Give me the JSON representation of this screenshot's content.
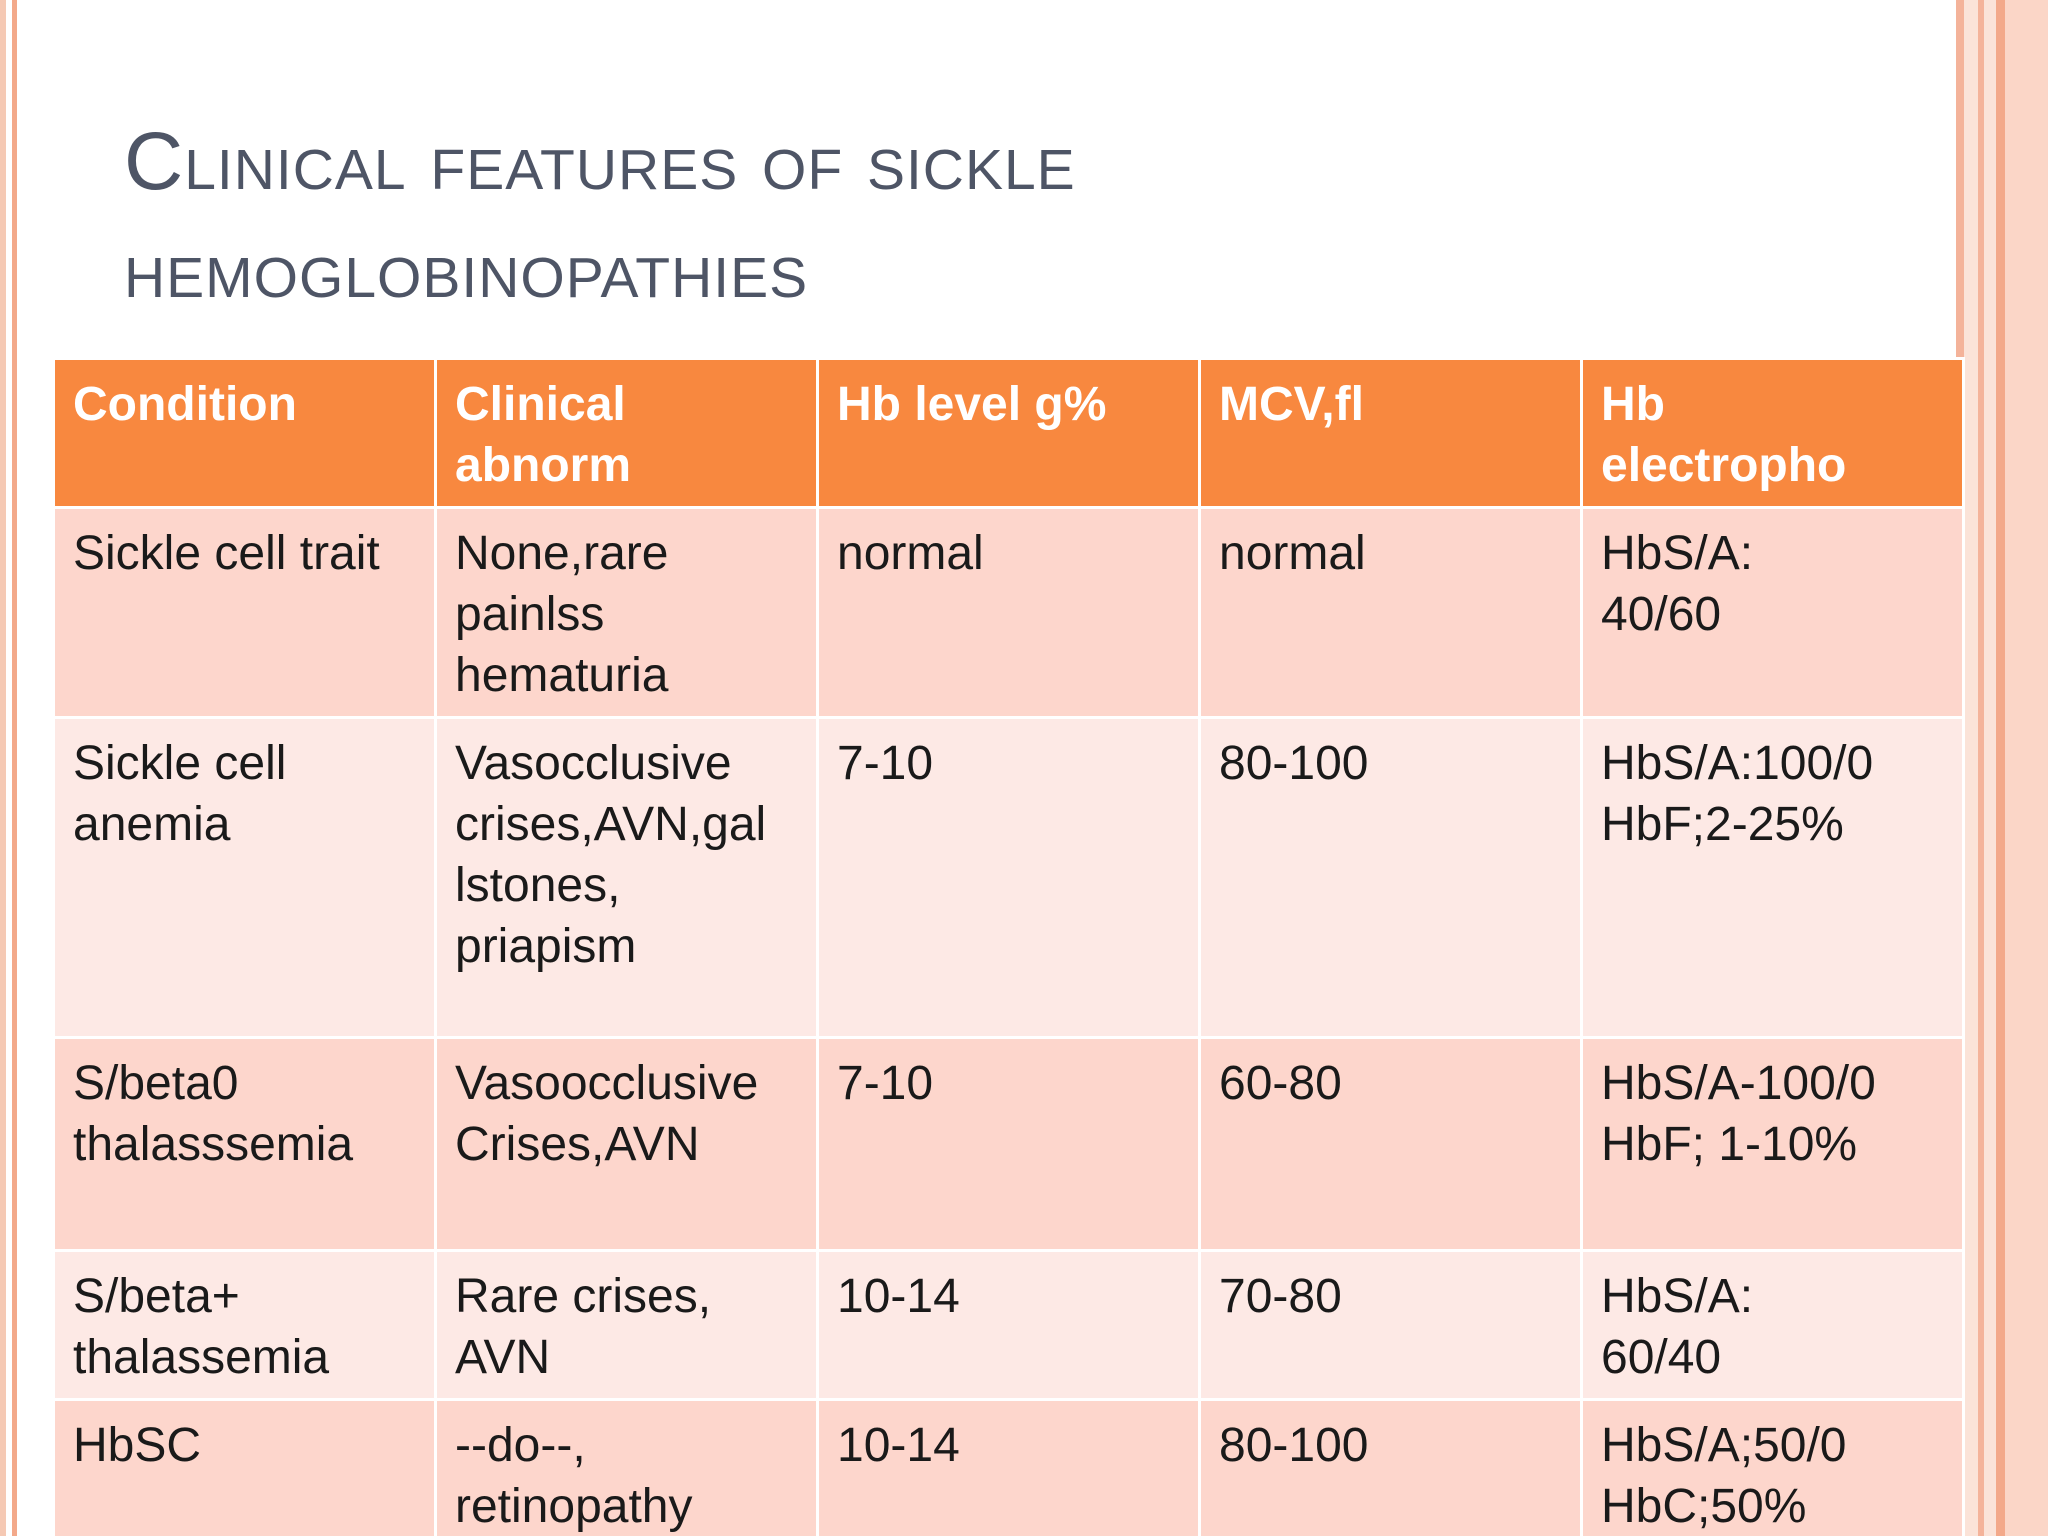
{
  "slide": {
    "title_line1": "Clinical features of sickle",
    "title_line2": "hemoglobinopathies"
  },
  "table": {
    "headers": [
      "Condition",
      "Clinical\nabnorm",
      "Hb level g%",
      "MCV,fl",
      "Hb\nelectropho"
    ],
    "rows": [
      [
        "Sickle cell trait",
        "None,rare\npainlss\nhematuria",
        "normal",
        "normal",
        "HbS/A:\n40/60"
      ],
      [
        "Sickle cell\nanemia",
        "Vasocclusive\ncrises,AVN,gal\nlstones,\npriapism",
        "7-10",
        "80-100",
        "HbS/A:100/0\nHbF;2-25%"
      ],
      [
        "S/beta0\nthalasssemia",
        "Vasoocclusive\nCrises,AVN",
        "7-10",
        "60-80",
        "HbS/A-100/0\nHbF; 1-10%"
      ],
      [
        "S/beta+\nthalassemia",
        "Rare crises,\nAVN",
        "10-14",
        "70-80",
        "HbS/A:\n60/40"
      ],
      [
        "HbSC",
        "--do--,\nretinopathy",
        " 10-14",
        " 80-100",
        "HbS/A;50/0\nHbC;50%"
      ]
    ]
  },
  "colors": {
    "header_bg": "#f8883f",
    "row_odd_bg": "#fdd6cc",
    "row_even_bg": "#fde9e5",
    "title_color": "#4e5566",
    "accent_stripe": "#f4b39a"
  }
}
